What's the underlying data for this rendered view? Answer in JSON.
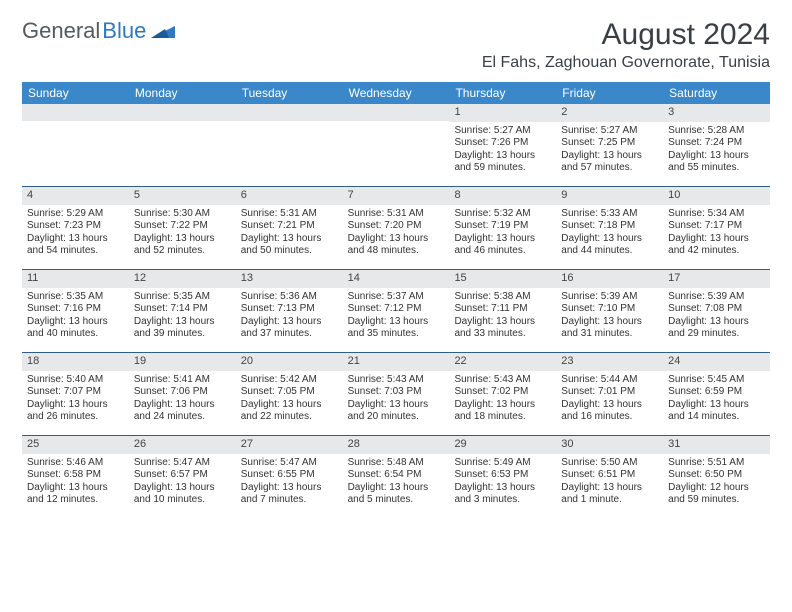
{
  "brand": {
    "part1": "General",
    "part2": "Blue"
  },
  "title": "August 2024",
  "location": "El Fahs, Zaghouan Governorate, Tunisia",
  "colors": {
    "header_bg": "#3a87c9",
    "header_text": "#ffffff",
    "daynum_bg": "#e7e8e9",
    "week_border": "#2f5d8c",
    "text": "#333333",
    "logo_gray": "#555a60",
    "logo_blue": "#2f78c2"
  },
  "day_names": [
    "Sunday",
    "Monday",
    "Tuesday",
    "Wednesday",
    "Thursday",
    "Friday",
    "Saturday"
  ],
  "weeks": [
    [
      {
        "n": "",
        "sr": "",
        "ss": "",
        "dl": ""
      },
      {
        "n": "",
        "sr": "",
        "ss": "",
        "dl": ""
      },
      {
        "n": "",
        "sr": "",
        "ss": "",
        "dl": ""
      },
      {
        "n": "",
        "sr": "",
        "ss": "",
        "dl": ""
      },
      {
        "n": "1",
        "sr": "Sunrise: 5:27 AM",
        "ss": "Sunset: 7:26 PM",
        "dl": "Daylight: 13 hours and 59 minutes."
      },
      {
        "n": "2",
        "sr": "Sunrise: 5:27 AM",
        "ss": "Sunset: 7:25 PM",
        "dl": "Daylight: 13 hours and 57 minutes."
      },
      {
        "n": "3",
        "sr": "Sunrise: 5:28 AM",
        "ss": "Sunset: 7:24 PM",
        "dl": "Daylight: 13 hours and 55 minutes."
      }
    ],
    [
      {
        "n": "4",
        "sr": "Sunrise: 5:29 AM",
        "ss": "Sunset: 7:23 PM",
        "dl": "Daylight: 13 hours and 54 minutes."
      },
      {
        "n": "5",
        "sr": "Sunrise: 5:30 AM",
        "ss": "Sunset: 7:22 PM",
        "dl": "Daylight: 13 hours and 52 minutes."
      },
      {
        "n": "6",
        "sr": "Sunrise: 5:31 AM",
        "ss": "Sunset: 7:21 PM",
        "dl": "Daylight: 13 hours and 50 minutes."
      },
      {
        "n": "7",
        "sr": "Sunrise: 5:31 AM",
        "ss": "Sunset: 7:20 PM",
        "dl": "Daylight: 13 hours and 48 minutes."
      },
      {
        "n": "8",
        "sr": "Sunrise: 5:32 AM",
        "ss": "Sunset: 7:19 PM",
        "dl": "Daylight: 13 hours and 46 minutes."
      },
      {
        "n": "9",
        "sr": "Sunrise: 5:33 AM",
        "ss": "Sunset: 7:18 PM",
        "dl": "Daylight: 13 hours and 44 minutes."
      },
      {
        "n": "10",
        "sr": "Sunrise: 5:34 AM",
        "ss": "Sunset: 7:17 PM",
        "dl": "Daylight: 13 hours and 42 minutes."
      }
    ],
    [
      {
        "n": "11",
        "sr": "Sunrise: 5:35 AM",
        "ss": "Sunset: 7:16 PM",
        "dl": "Daylight: 13 hours and 40 minutes."
      },
      {
        "n": "12",
        "sr": "Sunrise: 5:35 AM",
        "ss": "Sunset: 7:14 PM",
        "dl": "Daylight: 13 hours and 39 minutes."
      },
      {
        "n": "13",
        "sr": "Sunrise: 5:36 AM",
        "ss": "Sunset: 7:13 PM",
        "dl": "Daylight: 13 hours and 37 minutes."
      },
      {
        "n": "14",
        "sr": "Sunrise: 5:37 AM",
        "ss": "Sunset: 7:12 PM",
        "dl": "Daylight: 13 hours and 35 minutes."
      },
      {
        "n": "15",
        "sr": "Sunrise: 5:38 AM",
        "ss": "Sunset: 7:11 PM",
        "dl": "Daylight: 13 hours and 33 minutes."
      },
      {
        "n": "16",
        "sr": "Sunrise: 5:39 AM",
        "ss": "Sunset: 7:10 PM",
        "dl": "Daylight: 13 hours and 31 minutes."
      },
      {
        "n": "17",
        "sr": "Sunrise: 5:39 AM",
        "ss": "Sunset: 7:08 PM",
        "dl": "Daylight: 13 hours and 29 minutes."
      }
    ],
    [
      {
        "n": "18",
        "sr": "Sunrise: 5:40 AM",
        "ss": "Sunset: 7:07 PM",
        "dl": "Daylight: 13 hours and 26 minutes."
      },
      {
        "n": "19",
        "sr": "Sunrise: 5:41 AM",
        "ss": "Sunset: 7:06 PM",
        "dl": "Daylight: 13 hours and 24 minutes."
      },
      {
        "n": "20",
        "sr": "Sunrise: 5:42 AM",
        "ss": "Sunset: 7:05 PM",
        "dl": "Daylight: 13 hours and 22 minutes."
      },
      {
        "n": "21",
        "sr": "Sunrise: 5:43 AM",
        "ss": "Sunset: 7:03 PM",
        "dl": "Daylight: 13 hours and 20 minutes."
      },
      {
        "n": "22",
        "sr": "Sunrise: 5:43 AM",
        "ss": "Sunset: 7:02 PM",
        "dl": "Daylight: 13 hours and 18 minutes."
      },
      {
        "n": "23",
        "sr": "Sunrise: 5:44 AM",
        "ss": "Sunset: 7:01 PM",
        "dl": "Daylight: 13 hours and 16 minutes."
      },
      {
        "n": "24",
        "sr": "Sunrise: 5:45 AM",
        "ss": "Sunset: 6:59 PM",
        "dl": "Daylight: 13 hours and 14 minutes."
      }
    ],
    [
      {
        "n": "25",
        "sr": "Sunrise: 5:46 AM",
        "ss": "Sunset: 6:58 PM",
        "dl": "Daylight: 13 hours and 12 minutes."
      },
      {
        "n": "26",
        "sr": "Sunrise: 5:47 AM",
        "ss": "Sunset: 6:57 PM",
        "dl": "Daylight: 13 hours and 10 minutes."
      },
      {
        "n": "27",
        "sr": "Sunrise: 5:47 AM",
        "ss": "Sunset: 6:55 PM",
        "dl": "Daylight: 13 hours and 7 minutes."
      },
      {
        "n": "28",
        "sr": "Sunrise: 5:48 AM",
        "ss": "Sunset: 6:54 PM",
        "dl": "Daylight: 13 hours and 5 minutes."
      },
      {
        "n": "29",
        "sr": "Sunrise: 5:49 AM",
        "ss": "Sunset: 6:53 PM",
        "dl": "Daylight: 13 hours and 3 minutes."
      },
      {
        "n": "30",
        "sr": "Sunrise: 5:50 AM",
        "ss": "Sunset: 6:51 PM",
        "dl": "Daylight: 13 hours and 1 minute."
      },
      {
        "n": "31",
        "sr": "Sunrise: 5:51 AM",
        "ss": "Sunset: 6:50 PM",
        "dl": "Daylight: 12 hours and 59 minutes."
      }
    ]
  ]
}
